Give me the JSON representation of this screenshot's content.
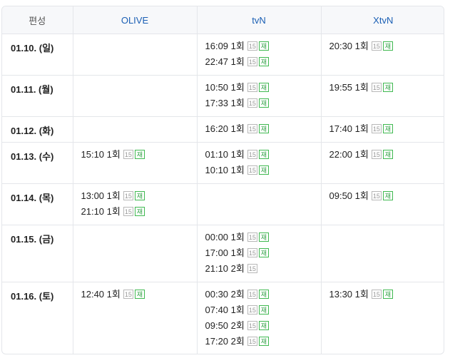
{
  "header": {
    "label": "편성",
    "channels": [
      "OLIVE",
      "tvN",
      "XtvN"
    ]
  },
  "rows": [
    {
      "date": "01.10. (일)",
      "heights": 58,
      "cells": [
        [],
        [
          {
            "time": "16:09",
            "ep": "1회",
            "age": "15",
            "re": "재"
          },
          {
            "time": "22:47",
            "ep": "1회",
            "age": "15",
            "re": "재"
          }
        ],
        [
          {
            "time": "20:30",
            "ep": "1회",
            "age": "15",
            "re": "재"
          }
        ]
      ]
    },
    {
      "date": "01.11. (월)",
      "cells": [
        [],
        [
          {
            "time": "10:50",
            "ep": "1회",
            "age": "15",
            "re": "재"
          },
          {
            "time": "17:33",
            "ep": "1회",
            "age": "15",
            "re": "재"
          }
        ],
        [
          {
            "time": "19:55",
            "ep": "1회",
            "age": "15",
            "re": "재"
          }
        ]
      ]
    },
    {
      "date": "01.12. (화)",
      "cells": [
        [],
        [
          {
            "time": "16:20",
            "ep": "1회",
            "age": "15",
            "re": "재"
          }
        ],
        [
          {
            "time": "17:40",
            "ep": "1회",
            "age": "15",
            "re": "재"
          }
        ]
      ]
    },
    {
      "date": "01.13. (수)",
      "cells": [
        [
          {
            "time": "15:10",
            "ep": "1회",
            "age": "15",
            "re": "재"
          }
        ],
        [
          {
            "time": "01:10",
            "ep": "1회",
            "age": "15",
            "re": "재"
          },
          {
            "time": "10:10",
            "ep": "1회",
            "age": "15",
            "re": "재"
          }
        ],
        [
          {
            "time": "22:00",
            "ep": "1회",
            "age": "15",
            "re": "재"
          }
        ]
      ]
    },
    {
      "date": "01.14. (목)",
      "cells": [
        [
          {
            "time": "13:00",
            "ep": "1회",
            "age": "15",
            "re": "재"
          },
          {
            "time": "21:10",
            "ep": "1회",
            "age": "15",
            "re": "재"
          }
        ],
        [],
        [
          {
            "time": "09:50",
            "ep": "1회",
            "age": "15",
            "re": "재"
          }
        ]
      ]
    },
    {
      "date": "01.15. (금)",
      "cells": [
        [],
        [
          {
            "time": "00:00",
            "ep": "1회",
            "age": "15",
            "re": "재"
          },
          {
            "time": "17:00",
            "ep": "1회",
            "age": "15",
            "re": "재"
          },
          {
            "time": "21:10",
            "ep": "2회",
            "age": "15",
            "re": ""
          }
        ],
        []
      ]
    },
    {
      "date": "01.16. (토)",
      "cells": [
        [
          {
            "time": "12:40",
            "ep": "1회",
            "age": "15",
            "re": "재"
          }
        ],
        [
          {
            "time": "00:30",
            "ep": "2회",
            "age": "15",
            "re": "재"
          },
          {
            "time": "07:40",
            "ep": "1회",
            "age": "15",
            "re": "재"
          },
          {
            "time": "09:50",
            "ep": "2회",
            "age": "15",
            "re": "재"
          },
          {
            "time": "17:20",
            "ep": "2회",
            "age": "15",
            "re": "재"
          }
        ],
        [
          {
            "time": "13:30",
            "ep": "1회",
            "age": "15",
            "re": "재"
          }
        ]
      ]
    }
  ]
}
